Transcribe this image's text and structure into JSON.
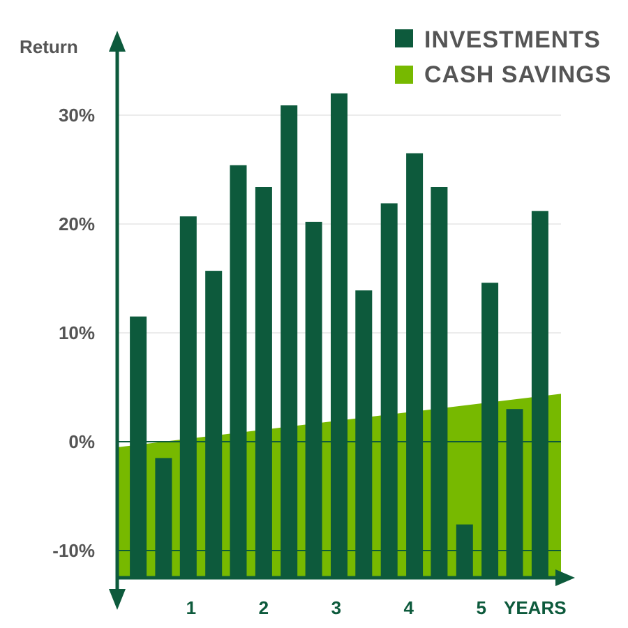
{
  "chart_data": {
    "type": "bar",
    "ylabel": "Return",
    "xlabel": "YEARS",
    "ylim": [
      -12.5,
      37
    ],
    "xlim": [
      0,
      6.1
    ],
    "yticks": [
      30,
      20,
      10,
      0,
      -10
    ],
    "ytick_labels": [
      "30%",
      "20%",
      "10%",
      "0%",
      "-10%"
    ],
    "xticks": [
      1,
      2,
      3,
      4,
      5
    ],
    "xtick_labels": [
      "1",
      "2",
      "3",
      "4",
      "5"
    ],
    "grid": true,
    "legend_position": "top-right",
    "series": [
      {
        "name": "INVESTMENTS",
        "type": "bar",
        "color": "#0d5a3c",
        "x": [
          0.27,
          0.62,
          0.96,
          1.31,
          1.65,
          2.0,
          2.35,
          2.69,
          3.04,
          3.38,
          3.73,
          4.08,
          4.42,
          4.77,
          5.12,
          5.46,
          5.81
        ],
        "values": [
          11.5,
          -1.5,
          20.7,
          15.7,
          25.4,
          23.4,
          30.9,
          20.2,
          32.0,
          13.9,
          21.9,
          26.5,
          23.4,
          -7.6,
          14.6,
          3.0,
          21.2
        ]
      },
      {
        "name": "CASH SAVINGS",
        "type": "area",
        "color": "#77b900",
        "x": [
          0,
          6.1
        ],
        "values": [
          -0.5,
          4.4
        ]
      }
    ]
  }
}
